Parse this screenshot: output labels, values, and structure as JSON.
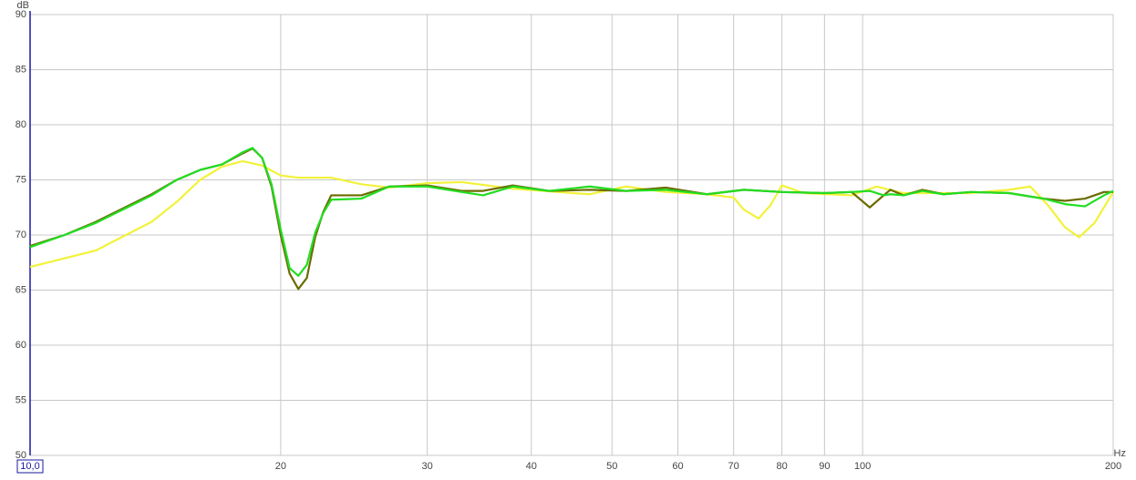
{
  "chart_data": {
    "type": "line",
    "x_label": "Hz",
    "y_label": "dB",
    "xlog": true,
    "grid": true,
    "xlim": [
      10,
      200
    ],
    "xticks": [
      {
        "value": 10,
        "label": "10,0"
      },
      20,
      30,
      40,
      50,
      60,
      70,
      80,
      90,
      100,
      200
    ],
    "ylim": [
      50,
      90
    ],
    "yticks": [
      50,
      55,
      60,
      65,
      70,
      75,
      80,
      85,
      90
    ],
    "series": [
      {
        "color": "#f2f23a",
        "x": [
          10,
          12,
          14,
          15,
          16,
          17,
          18,
          19,
          20,
          21,
          23,
          25,
          27,
          30,
          33,
          38,
          47,
          52,
          58,
          65,
          70,
          72,
          75,
          77.5,
          80,
          85,
          97,
          104,
          112,
          135,
          150,
          159,
          167,
          175,
          182,
          190,
          200
        ],
        "values": [
          67.1,
          68.6,
          71.2,
          73.0,
          75.0,
          76.2,
          76.7,
          76.3,
          75.4,
          75.2,
          75.2,
          74.6,
          74.3,
          74.7,
          74.8,
          74.2,
          73.7,
          74.4,
          73.9,
          73.7,
          73.4,
          72.3,
          71.5,
          72.7,
          74.5,
          73.8,
          73.6,
          74.4,
          73.8,
          73.8,
          74.1,
          74.4,
          72.7,
          70.7,
          69.8,
          71.1,
          73.9
        ]
      },
      {
        "color": "#6b6b00",
        "x": [
          10,
          11,
          12,
          13,
          14,
          15,
          16,
          17,
          18,
          18.5,
          19,
          19.5,
          20,
          20.5,
          21,
          21.5,
          22,
          22.5,
          23,
          25,
          27,
          30,
          33,
          35,
          38,
          42,
          47,
          52,
          58,
          65,
          72,
          80,
          90,
          97,
          102,
          106,
          108,
          112,
          118,
          125,
          135,
          150,
          165,
          175,
          185,
          195,
          200
        ],
        "values": [
          69.0,
          70.0,
          71.2,
          72.5,
          73.7,
          75.0,
          75.9,
          76.4,
          77.4,
          77.85,
          77.0,
          74.4,
          70.0,
          66.5,
          65.1,
          66.1,
          69.8,
          72.1,
          73.6,
          73.6,
          74.4,
          74.5,
          74.0,
          74.0,
          74.5,
          74.0,
          74.1,
          74.0,
          74.3,
          73.7,
          74.1,
          73.9,
          73.8,
          73.9,
          72.5,
          73.6,
          74.1,
          73.6,
          74.1,
          73.7,
          73.9,
          73.8,
          73.3,
          73.1,
          73.3,
          73.9,
          73.9
        ]
      },
      {
        "color": "#22dd22",
        "x": [
          10,
          11,
          12,
          13,
          14,
          15,
          16,
          17,
          18,
          18.5,
          19,
          19.5,
          20,
          20.5,
          21,
          21.5,
          22,
          22.5,
          23,
          25,
          27,
          30,
          33,
          35,
          38,
          42,
          47,
          52,
          58,
          65,
          72,
          80,
          90,
          97,
          102,
          106,
          108,
          112,
          118,
          125,
          135,
          150,
          165,
          175,
          185,
          195,
          200
        ],
        "values": [
          68.9,
          70.0,
          71.1,
          72.4,
          73.6,
          75.0,
          75.9,
          76.4,
          77.5,
          77.9,
          77.0,
          74.6,
          70.5,
          67.0,
          66.3,
          67.3,
          70.2,
          72.0,
          73.2,
          73.3,
          74.4,
          74.4,
          73.9,
          73.6,
          74.4,
          74.0,
          74.4,
          74.0,
          74.1,
          73.7,
          74.1,
          73.9,
          73.8,
          73.9,
          74.0,
          73.6,
          73.7,
          73.6,
          74.0,
          73.7,
          73.9,
          73.8,
          73.3,
          72.8,
          72.6,
          73.6,
          74.0
        ]
      }
    ]
  }
}
